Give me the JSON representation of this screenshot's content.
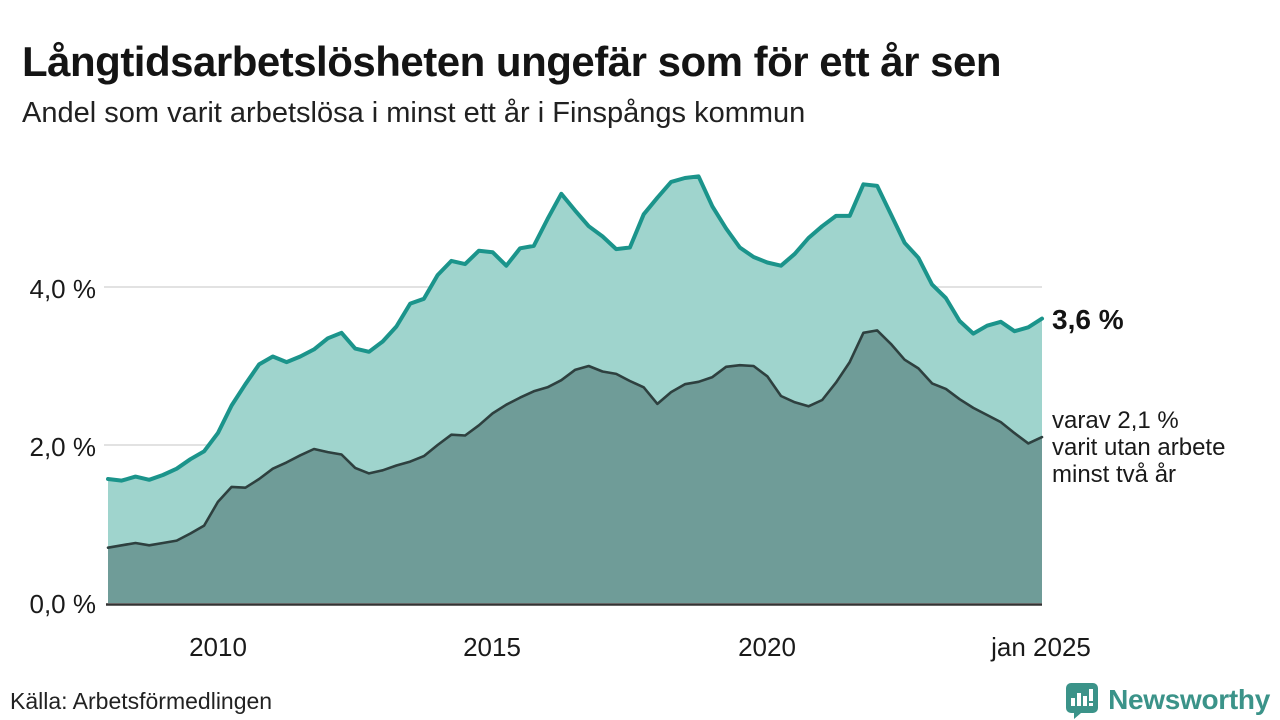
{
  "title": "Långtidsarbetslösheten ungefär som för ett år sen",
  "subtitle": "Andel som varit arbetslösa i minst ett år i Finspångs kommun",
  "y_axis": {
    "labels": [
      "4,0 %",
      "2,0 %",
      "0,0 %"
    ]
  },
  "x_axis": {
    "labels": [
      "2010",
      "2015",
      "2020",
      "jan 2025"
    ]
  },
  "annotations": {
    "latest_total": "3,6 %",
    "latest_two_years_line1": "varav 2,1 %",
    "latest_two_years_line2": "varit utan arbete",
    "latest_two_years_line3": "minst två år"
  },
  "source": "Källa: Arbetsförmedlingen",
  "brand": {
    "name": "Newsworthy",
    "icon": "bar-chart-speech-bubble-icon",
    "color": "#3b9389"
  },
  "colors": {
    "line_total": "#1b948b",
    "fill_total": "#9fd4cd",
    "line_two_years": "#2e403f",
    "fill_two_years": "#6f9c98",
    "gridline": "#d9d9d9",
    "axis": "#333333",
    "text": "#1a1a1a"
  },
  "chart_data": {
    "type": "area",
    "title": "Långtidsarbetslösheten ungefär som för ett år sen",
    "subtitle": "Andel som varit arbetslösa i minst ett år i Finspångs kommun",
    "unit": "%",
    "grid": "horizontal",
    "legend_position": "right-annotations",
    "ylim": [
      0,
      5.8
    ],
    "yticks": [
      0,
      2,
      4
    ],
    "ytick_labels": [
      "0,0 %",
      "2,0 %",
      "4,0 %"
    ],
    "xticks": [
      2010,
      2015,
      2020,
      2025
    ],
    "xtick_labels": [
      "2010",
      "2015",
      "2020",
      "jan 2025"
    ],
    "x_range_note": "monthly data jan 2008 - jan 2025, sampled quarterly below",
    "x": [
      2008,
      2008.25,
      2008.5,
      2008.75,
      2009,
      2009.25,
      2009.5,
      2009.75,
      2010,
      2010.25,
      2010.5,
      2010.75,
      2011,
      2011.25,
      2011.5,
      2011.75,
      2012,
      2012.25,
      2012.5,
      2012.75,
      2013,
      2013.25,
      2013.5,
      2013.75,
      2014,
      2014.25,
      2014.5,
      2014.75,
      2015,
      2015.25,
      2015.5,
      2015.75,
      2016,
      2016.25,
      2016.5,
      2016.75,
      2017,
      2017.25,
      2017.5,
      2017.75,
      2018,
      2018.25,
      2018.5,
      2018.75,
      2019,
      2019.25,
      2019.5,
      2019.75,
      2020,
      2020.25,
      2020.5,
      2020.75,
      2021,
      2021.25,
      2021.5,
      2021.75,
      2022,
      2022.25,
      2022.5,
      2022.75,
      2023,
      2023.25,
      2023.5,
      2023.75,
      2024,
      2024.25,
      2024.5,
      2024.75,
      2025
    ],
    "series": [
      {
        "name": "Andel arbetslösa minst ett år",
        "latest_label": "3,6 %",
        "values": [
          1.57,
          1.55,
          1.6,
          1.56,
          1.62,
          1.7,
          1.82,
          1.92,
          2.15,
          2.5,
          2.77,
          3.02,
          3.12,
          3.05,
          3.12,
          3.21,
          3.35,
          3.42,
          3.22,
          3.18,
          3.31,
          3.5,
          3.79,
          3.85,
          4.15,
          4.33,
          4.29,
          4.46,
          4.44,
          4.27,
          4.49,
          4.52,
          4.86,
          5.18,
          4.97,
          4.77,
          4.64,
          4.48,
          4.5,
          4.92,
          5.13,
          5.33,
          5.38,
          5.4,
          5.02,
          4.74,
          4.5,
          4.38,
          4.31,
          4.27,
          4.42,
          4.62,
          4.77,
          4.9,
          4.9,
          5.3,
          5.28,
          4.92,
          4.56,
          4.37,
          4.03,
          3.86,
          3.57,
          3.41,
          3.51,
          3.56,
          3.44,
          3.49,
          3.6
        ]
      },
      {
        "name": "Andel arbetslösa minst två år",
        "latest_label": "varav 2,1 % varit utan arbete minst två år",
        "values": [
          0.7,
          0.73,
          0.76,
          0.73,
          0.76,
          0.79,
          0.88,
          0.98,
          1.28,
          1.47,
          1.46,
          1.57,
          1.7,
          1.78,
          1.87,
          1.95,
          1.91,
          1.88,
          1.71,
          1.64,
          1.68,
          1.74,
          1.79,
          1.86,
          2.0,
          2.13,
          2.12,
          2.25,
          2.4,
          2.51,
          2.6,
          2.68,
          2.73,
          2.82,
          2.95,
          3.0,
          2.93,
          2.9,
          2.81,
          2.73,
          2.52,
          2.67,
          2.77,
          2.8,
          2.86,
          2.99,
          3.01,
          3.0,
          2.87,
          2.62,
          2.54,
          2.49,
          2.57,
          2.79,
          3.05,
          3.42,
          3.45,
          3.28,
          3.08,
          2.97,
          2.78,
          2.71,
          2.58,
          2.47,
          2.38,
          2.29,
          2.15,
          2.02,
          2.1
        ]
      }
    ]
  }
}
